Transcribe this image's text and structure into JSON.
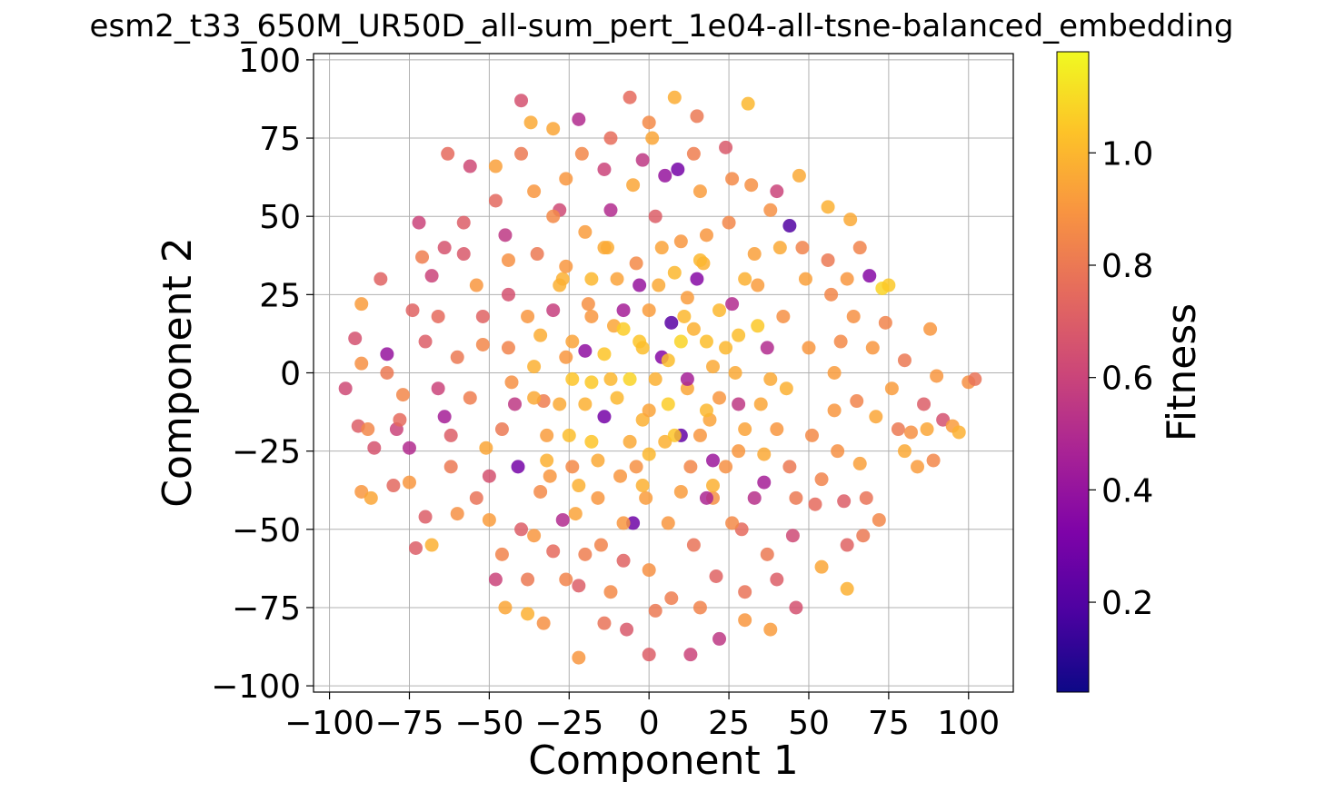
{
  "chart_data": {
    "type": "scatter",
    "title": "esm2_t33_650M_UR50D_all-sum_pert_1e04-all-tsne-balanced_embedding",
    "xlabel": "Component 1",
    "ylabel": "Component 2",
    "xlim": [
      -105,
      114
    ],
    "ylim": [
      -102,
      102
    ],
    "xticks": [
      -100,
      -75,
      -50,
      -25,
      0,
      25,
      50,
      75,
      100
    ],
    "xtick_labels": [
      "−100",
      "−75",
      "−50",
      "−25",
      "0",
      "25",
      "50",
      "75",
      "100"
    ],
    "yticks": [
      -100,
      -75,
      -50,
      -25,
      0,
      25,
      50,
      75,
      100
    ],
    "ytick_labels": [
      "−100",
      "−75",
      "−50",
      "−25",
      "0",
      "25",
      "50",
      "75",
      "100"
    ],
    "grid": true,
    "colormap": "plasma",
    "colorbar": {
      "label": "Fitness",
      "range": [
        0.04,
        1.18
      ],
      "ticks": [
        0.2,
        0.4,
        0.6,
        0.8,
        1.0
      ],
      "tick_labels": [
        "0.2",
        "0.4",
        "0.6",
        "0.8",
        "1.0"
      ]
    },
    "points": [
      [
        -95,
        -5,
        0.62
      ],
      [
        -91,
        -17,
        0.7
      ],
      [
        -88,
        -18,
        0.85
      ],
      [
        -90,
        -38,
        0.9
      ],
      [
        -87,
        -40,
        0.95
      ],
      [
        -90,
        22,
        0.92
      ],
      [
        -90,
        3,
        0.88
      ],
      [
        -92,
        11,
        0.65
      ],
      [
        -84,
        30,
        0.72
      ],
      [
        -82,
        6,
        0.4
      ],
      [
        -79,
        -18,
        0.6
      ],
      [
        -77,
        -7,
        0.85
      ],
      [
        -75,
        -24,
        0.5
      ],
      [
        -75,
        -35,
        0.9
      ],
      [
        -73,
        -56,
        0.7
      ],
      [
        -68,
        -55,
        0.98
      ],
      [
        -72,
        48,
        0.6
      ],
      [
        -71,
        37,
        0.82
      ],
      [
        -68,
        31,
        0.6
      ],
      [
        -66,
        18,
        0.75
      ],
      [
        -64,
        -14,
        0.45
      ],
      [
        -62,
        -30,
        0.8
      ],
      [
        -60,
        -45,
        0.88
      ],
      [
        -63,
        70,
        0.75
      ],
      [
        -58,
        48,
        0.7
      ],
      [
        -56,
        66,
        0.62
      ],
      [
        -54,
        28,
        0.9
      ],
      [
        -52,
        9,
        0.85
      ],
      [
        -51,
        -24,
        0.95
      ],
      [
        -50,
        -47,
        0.92
      ],
      [
        -48,
        -66,
        0.6
      ],
      [
        -45,
        -75,
        0.95
      ],
      [
        -48,
        66,
        0.93
      ],
      [
        -45,
        44,
        0.55
      ],
      [
        -44,
        25,
        0.65
      ],
      [
        -43,
        -3,
        0.88
      ],
      [
        -41,
        -30,
        0.3
      ],
      [
        -40,
        -50,
        0.7
      ],
      [
        -38,
        -77,
        0.98
      ],
      [
        -40,
        87,
        0.65
      ],
      [
        -37,
        80,
        0.96
      ],
      [
        -36,
        58,
        0.9
      ],
      [
        -35,
        38,
        0.8
      ],
      [
        -34,
        12,
        0.97
      ],
      [
        -33,
        -9,
        0.82
      ],
      [
        -31,
        -33,
        0.9
      ],
      [
        -30,
        -57,
        0.75
      ],
      [
        -33,
        -80,
        0.88
      ],
      [
        -30,
        78,
        0.95
      ],
      [
        -28,
        52,
        0.62
      ],
      [
        -27,
        30,
        0.98
      ],
      [
        -26,
        5,
        0.9
      ],
      [
        -25,
        -20,
        1.02
      ],
      [
        -23,
        -45,
        0.94
      ],
      [
        -22,
        -68,
        0.7
      ],
      [
        -22,
        -91,
        0.9
      ],
      [
        -22,
        81,
        0.5
      ],
      [
        -21,
        70,
        0.85
      ],
      [
        -20,
        45,
        0.92
      ],
      [
        -19,
        22,
        0.88
      ],
      [
        -18,
        -3,
        1.05
      ],
      [
        -16,
        -28,
        0.96
      ],
      [
        -15,
        -55,
        0.84
      ],
      [
        -14,
        -80,
        0.78
      ],
      [
        -14,
        65,
        0.6
      ],
      [
        -13,
        40,
        0.97
      ],
      [
        -11,
        15,
        0.95
      ],
      [
        -10,
        -8,
        1.0
      ],
      [
        -9,
        -33,
        0.9
      ],
      [
        -8,
        -60,
        0.72
      ],
      [
        -7,
        -82,
        0.68
      ],
      [
        -6,
        88,
        0.75
      ],
      [
        -5,
        60,
        0.95
      ],
      [
        -4,
        35,
        0.86
      ],
      [
        -3,
        10,
        1.04
      ],
      [
        -2,
        -15,
        0.98
      ],
      [
        -1,
        -40,
        0.92
      ],
      [
        0,
        -63,
        0.88
      ],
      [
        0,
        -90,
        0.7
      ],
      [
        1,
        75,
        0.95
      ],
      [
        2,
        50,
        0.7
      ],
      [
        3,
        28,
        0.96
      ],
      [
        4,
        5,
        0.35
      ],
      [
        5,
        -22,
        0.98
      ],
      [
        6,
        -48,
        0.9
      ],
      [
        7,
        -72,
        0.82
      ],
      [
        8,
        88,
        0.97
      ],
      [
        9,
        65,
        0.3
      ],
      [
        10,
        42,
        0.9
      ],
      [
        11,
        18,
        1.0
      ],
      [
        12,
        -5,
        0.95
      ],
      [
        13,
        -30,
        0.85
      ],
      [
        14,
        -55,
        0.78
      ],
      [
        13,
        -90,
        0.6
      ],
      [
        15,
        82,
        0.8
      ],
      [
        16,
        58,
        0.92
      ],
      [
        17,
        35,
        0.98
      ],
      [
        18,
        10,
        1.02
      ],
      [
        19,
        -15,
        0.94
      ],
      [
        20,
        -40,
        0.88
      ],
      [
        21,
        -65,
        0.72
      ],
      [
        22,
        -85,
        0.55
      ],
      [
        24,
        72,
        0.68
      ],
      [
        25,
        48,
        0.85
      ],
      [
        26,
        22,
        0.5
      ],
      [
        27,
        0,
        0.96
      ],
      [
        28,
        -25,
        0.9
      ],
      [
        29,
        -50,
        0.75
      ],
      [
        30,
        -79,
        0.9
      ],
      [
        31,
        86,
        1.0
      ],
      [
        32,
        60,
        0.88
      ],
      [
        33,
        38,
        0.93
      ],
      [
        34,
        15,
        1.05
      ],
      [
        35,
        -10,
        0.95
      ],
      [
        36,
        -35,
        0.45
      ],
      [
        37,
        -58,
        0.8
      ],
      [
        38,
        -82,
        0.92
      ],
      [
        40,
        58,
        0.6
      ],
      [
        41,
        40,
        0.96
      ],
      [
        42,
        18,
        0.88
      ],
      [
        43,
        -5,
        0.98
      ],
      [
        44,
        -30,
        0.8
      ],
      [
        45,
        -52,
        0.62
      ],
      [
        46,
        -75,
        0.65
      ],
      [
        44,
        47,
        0.2
      ],
      [
        47,
        63,
        0.96
      ],
      [
        49,
        30,
        0.93
      ],
      [
        50,
        8,
        0.9
      ],
      [
        51,
        -20,
        0.86
      ],
      [
        52,
        -42,
        0.75
      ],
      [
        54,
        -62,
        0.95
      ],
      [
        56,
        53,
        0.98
      ],
      [
        57,
        25,
        0.85
      ],
      [
        58,
        0,
        0.92
      ],
      [
        59,
        -25,
        0.88
      ],
      [
        61,
        -41,
        0.7
      ],
      [
        62,
        -69,
        0.98
      ],
      [
        63,
        49,
        0.96
      ],
      [
        64,
        18,
        0.88
      ],
      [
        65,
        -9,
        0.84
      ],
      [
        66,
        -29,
        0.93
      ],
      [
        67,
        -52,
        0.8
      ],
      [
        69,
        31,
        0.35
      ],
      [
        70,
        8,
        0.9
      ],
      [
        71,
        -14,
        0.95
      ],
      [
        72,
        -47,
        0.85
      ],
      [
        73,
        27,
        1.08
      ],
      [
        75,
        28,
        1.05
      ],
      [
        76,
        -5,
        0.92
      ],
      [
        78,
        -18,
        0.8
      ],
      [
        80,
        -25,
        0.96
      ],
      [
        82,
        -19,
        0.88
      ],
      [
        84,
        -30,
        0.92
      ],
      [
        86,
        -10,
        0.7
      ],
      [
        87,
        -18,
        0.95
      ],
      [
        89,
        -28,
        0.85
      ],
      [
        88,
        14,
        0.9
      ],
      [
        90,
        -1,
        0.9
      ],
      [
        92,
        -15,
        0.65
      ],
      [
        95,
        -17,
        0.92
      ],
      [
        97,
        -19,
        0.98
      ],
      [
        100,
        -3,
        0.88
      ],
      [
        102,
        -2,
        0.78
      ],
      [
        -14,
        -14,
        0.3
      ],
      [
        -8,
        20,
        0.45
      ],
      [
        10,
        -20,
        0.25
      ],
      [
        -3,
        28,
        0.4
      ],
      [
        20,
        -28,
        0.42
      ],
      [
        -27,
        -47,
        0.5
      ],
      [
        -5,
        -48,
        0.28
      ],
      [
        18,
        -40,
        0.48
      ],
      [
        -42,
        -10,
        0.55
      ],
      [
        37,
        8,
        0.5
      ],
      [
        7,
        16,
        0.22
      ],
      [
        -20,
        7,
        0.38
      ],
      [
        15,
        30,
        0.35
      ],
      [
        -12,
        52,
        0.5
      ],
      [
        28,
        -10,
        0.55
      ],
      [
        -30,
        20,
        0.58
      ],
      [
        12,
        -2,
        0.45
      ],
      [
        33,
        -40,
        0.52
      ],
      [
        -2,
        68,
        0.55
      ],
      [
        -50,
        -33,
        0.65
      ],
      [
        5,
        63,
        0.4
      ],
      [
        -36,
        2,
        0.98
      ],
      [
        -24,
        10,
        0.94
      ],
      [
        -18,
        18,
        0.9
      ],
      [
        -12,
        -2,
        1.0
      ],
      [
        -6,
        -22,
        0.96
      ],
      [
        0,
        20,
        0.92
      ],
      [
        6,
        -10,
        1.06
      ],
      [
        14,
        14,
        0.98
      ],
      [
        22,
        -8,
        0.9
      ],
      [
        28,
        12,
        1.02
      ],
      [
        -28,
        -10,
        0.96
      ],
      [
        -16,
        -40,
        0.9
      ],
      [
        -4,
        -30,
        0.88
      ],
      [
        8,
        32,
        1.0
      ],
      [
        20,
        2,
        0.96
      ],
      [
        -32,
        -20,
        0.92
      ],
      [
        -24,
        -30,
        0.86
      ],
      [
        -10,
        30,
        0.94
      ],
      [
        2,
        -2,
        0.98
      ],
      [
        16,
        -20,
        0.9
      ],
      [
        30,
        -18,
        0.94
      ],
      [
        -38,
        18,
        0.9
      ],
      [
        -20,
        -10,
        0.98
      ],
      [
        -2,
        8,
        1.02
      ],
      [
        12,
        24,
        0.92
      ],
      [
        24,
        -30,
        0.88
      ],
      [
        -34,
        -38,
        0.86
      ],
      [
        -14,
        40,
        0.96
      ],
      [
        4,
        40,
        0.94
      ],
      [
        18,
        44,
        0.9
      ],
      [
        34,
        28,
        0.92
      ],
      [
        -44,
        8,
        0.84
      ],
      [
        -26,
        34,
        0.9
      ],
      [
        -8,
        -48,
        0.9
      ],
      [
        10,
        -38,
        0.92
      ],
      [
        26,
        -48,
        0.86
      ],
      [
        40,
        -18,
        0.9
      ],
      [
        -46,
        -18,
        0.8
      ],
      [
        -30,
        50,
        0.86
      ],
      [
        0,
        -12,
        0.94
      ],
      [
        22,
        20,
        1.0
      ],
      [
        -20,
        -58,
        0.82
      ],
      [
        38,
        -2,
        0.96
      ],
      [
        -56,
        -8,
        0.82
      ],
      [
        -60,
        5,
        0.8
      ],
      [
        -66,
        -5,
        0.6
      ],
      [
        -70,
        10,
        0.7
      ],
      [
        -78,
        -15,
        0.75
      ],
      [
        -82,
        0,
        0.8
      ],
      [
        -74,
        20,
        0.72
      ],
      [
        -62,
        -20,
        0.7
      ],
      [
        -54,
        -40,
        0.78
      ],
      [
        -46,
        -58,
        0.84
      ],
      [
        -38,
        -66,
        0.8
      ],
      [
        -58,
        38,
        0.68
      ],
      [
        -48,
        55,
        0.74
      ],
      [
        -40,
        70,
        0.8
      ],
      [
        -26,
        62,
        0.9
      ],
      [
        -12,
        75,
        0.76
      ],
      [
        0,
        80,
        0.86
      ],
      [
        14,
        70,
        0.82
      ],
      [
        26,
        62,
        0.86
      ],
      [
        38,
        52,
        0.88
      ],
      [
        48,
        40,
        0.84
      ],
      [
        56,
        36,
        0.8
      ],
      [
        60,
        10,
        0.86
      ],
      [
        58,
        -12,
        0.9
      ],
      [
        54,
        -34,
        0.84
      ],
      [
        46,
        -40,
        0.8
      ],
      [
        40,
        -66,
        0.7
      ],
      [
        30,
        -70,
        0.78
      ],
      [
        16,
        -75,
        0.84
      ],
      [
        2,
        -76,
        0.8
      ],
      [
        -12,
        -70,
        0.86
      ],
      [
        -26,
        -66,
        0.84
      ],
      [
        -36,
        -52,
        0.9
      ],
      [
        -52,
        18,
        0.72
      ],
      [
        -64,
        40,
        0.66
      ],
      [
        62,
        -55,
        0.72
      ],
      [
        68,
        -40,
        0.78
      ],
      [
        74,
        16,
        0.84
      ],
      [
        80,
        4,
        0.8
      ],
      [
        -86,
        -24,
        0.66
      ],
      [
        -80,
        -36,
        0.74
      ],
      [
        -70,
        -46,
        0.7
      ],
      [
        66,
        40,
        0.84
      ],
      [
        62,
        30,
        0.9
      ],
      [
        -44,
        36,
        0.88
      ],
      [
        -32,
        -28,
        0.98
      ],
      [
        -18,
        -22,
        1.04
      ],
      [
        -6,
        -2,
        1.08
      ],
      [
        6,
        4,
        1.02
      ],
      [
        18,
        -12,
        1.0
      ],
      [
        -14,
        6,
        1.04
      ],
      [
        0,
        -26,
        1.0
      ],
      [
        10,
        10,
        1.08
      ],
      [
        -24,
        -2,
        1.04
      ],
      [
        24,
        8,
        1.0
      ],
      [
        -8,
        14,
        1.06
      ],
      [
        8,
        -20,
        1.04
      ],
      [
        -2,
        -36,
        0.98
      ],
      [
        -28,
        28,
        0.98
      ],
      [
        30,
        30,
        0.98
      ],
      [
        -36,
        -8,
        0.96
      ],
      [
        36,
        -26,
        0.96
      ],
      [
        -18,
        30,
        1.0
      ],
      [
        16,
        36,
        1.0
      ],
      [
        -22,
        -36,
        0.98
      ],
      [
        20,
        -36,
        0.98
      ]
    ]
  }
}
